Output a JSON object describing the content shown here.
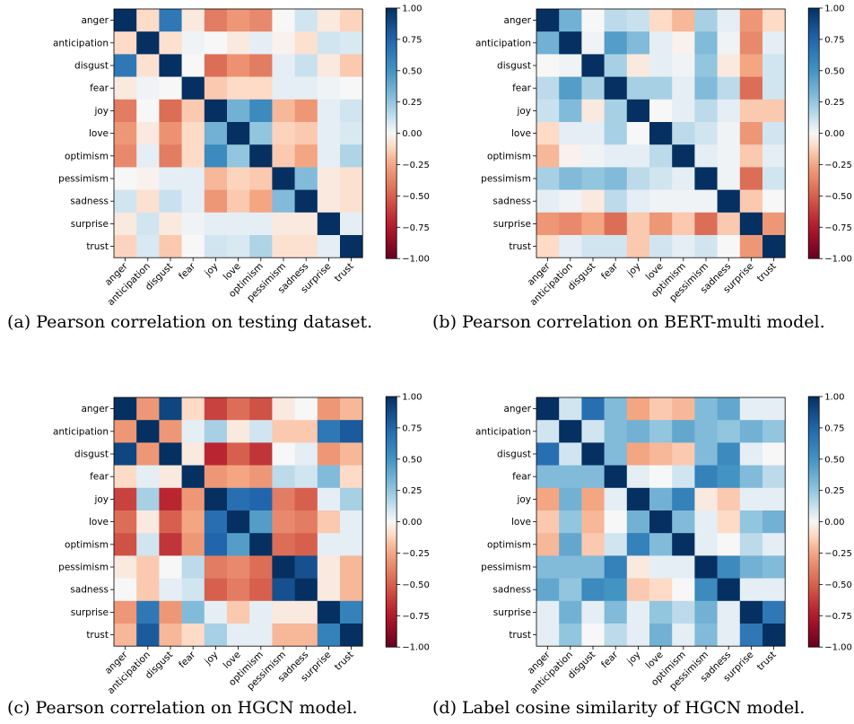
{
  "colorbar": {
    "ticks": [
      "1.00",
      "0.75",
      "0.50",
      "0.25",
      "0.00",
      "−0.25",
      "−0.50",
      "−0.75",
      "−1.00"
    ],
    "tick_values": [
      1.0,
      0.75,
      0.5,
      0.25,
      0.0,
      -0.25,
      -0.5,
      -0.75,
      -1.0
    ],
    "colors": {
      "high": "#053061",
      "mid": "#f7f7f7",
      "low": "#67001f"
    }
  },
  "chart_data": [
    {
      "type": "heatmap",
      "panel": "a",
      "caption": "(a) Pearson correlation on testing dataset.",
      "labels": [
        "anger",
        "anticipation",
        "disgust",
        "fear",
        "joy",
        "love",
        "optimism",
        "pessimism",
        "sadness",
        "surprise",
        "trust"
      ],
      "value_range": [
        -1,
        1
      ],
      "matrix": [
        [
          1.0,
          -0.1,
          0.65,
          -0.05,
          -0.4,
          -0.3,
          -0.35,
          0.0,
          0.1,
          -0.05,
          -0.12
        ],
        [
          -0.1,
          1.0,
          -0.08,
          0.02,
          0.0,
          -0.05,
          0.05,
          -0.02,
          -0.08,
          0.1,
          0.08
        ],
        [
          0.65,
          -0.08,
          1.0,
          0.0,
          -0.45,
          -0.32,
          -0.4,
          0.05,
          0.12,
          -0.05,
          -0.15
        ],
        [
          -0.05,
          0.02,
          0.0,
          1.0,
          -0.15,
          -0.1,
          -0.1,
          0.05,
          0.05,
          0.02,
          0.0
        ],
        [
          -0.4,
          0.0,
          -0.45,
          -0.15,
          1.0,
          0.35,
          0.55,
          -0.2,
          -0.3,
          0.05,
          0.1
        ],
        [
          -0.3,
          -0.05,
          -0.32,
          -0.1,
          0.35,
          1.0,
          0.25,
          -0.12,
          -0.15,
          0.05,
          0.08
        ],
        [
          -0.35,
          0.05,
          -0.4,
          -0.1,
          0.55,
          0.25,
          1.0,
          -0.15,
          -0.25,
          0.05,
          0.18
        ],
        [
          0.0,
          -0.02,
          0.05,
          0.05,
          -0.2,
          -0.12,
          -0.15,
          1.0,
          0.3,
          -0.05,
          -0.08
        ],
        [
          0.1,
          -0.08,
          0.12,
          0.05,
          -0.3,
          -0.15,
          -0.25,
          0.3,
          1.0,
          -0.05,
          -0.08
        ],
        [
          -0.05,
          0.1,
          -0.05,
          0.02,
          0.05,
          0.05,
          0.05,
          -0.05,
          -0.05,
          1.0,
          0.05
        ],
        [
          -0.12,
          0.08,
          -0.15,
          0.0,
          0.1,
          0.08,
          0.18,
          -0.08,
          -0.08,
          0.05,
          1.0
        ]
      ]
    },
    {
      "type": "heatmap",
      "panel": "b",
      "caption": "(b) Pearson correlation on BERT-multi model.",
      "labels": [
        "anger",
        "anticipation",
        "disgust",
        "fear",
        "joy",
        "love",
        "optimism",
        "pessimism",
        "sadness",
        "surprise",
        "trust"
      ],
      "value_range": [
        -1,
        1
      ],
      "matrix": [
        [
          1.0,
          0.35,
          0.0,
          0.15,
          0.12,
          -0.1,
          -0.2,
          0.2,
          0.05,
          -0.3,
          -0.1
        ],
        [
          0.35,
          1.0,
          0.02,
          0.45,
          0.3,
          0.05,
          -0.02,
          0.3,
          0.02,
          -0.35,
          0.05
        ],
        [
          0.0,
          0.02,
          1.0,
          0.2,
          -0.05,
          0.05,
          0.02,
          0.25,
          -0.05,
          -0.25,
          0.1
        ],
        [
          0.15,
          0.45,
          0.2,
          1.0,
          0.2,
          0.2,
          0.05,
          0.3,
          0.15,
          -0.45,
          0.1
        ],
        [
          0.12,
          0.3,
          -0.05,
          0.2,
          1.0,
          0.0,
          0.05,
          0.15,
          0.05,
          -0.15,
          -0.15
        ],
        [
          -0.1,
          0.05,
          0.05,
          0.2,
          0.0,
          1.0,
          0.15,
          0.1,
          0.02,
          -0.3,
          0.1
        ],
        [
          -0.2,
          -0.02,
          0.02,
          0.05,
          0.05,
          0.15,
          1.0,
          0.05,
          0.02,
          -0.15,
          0.05
        ],
        [
          0.2,
          0.3,
          0.25,
          0.3,
          0.15,
          0.1,
          0.05,
          1.0,
          0.02,
          -0.45,
          0.1
        ],
        [
          0.05,
          0.02,
          -0.05,
          0.15,
          0.05,
          0.02,
          0.02,
          0.02,
          1.0,
          -0.15,
          0.0
        ],
        [
          -0.3,
          -0.35,
          -0.25,
          -0.45,
          -0.15,
          -0.3,
          -0.15,
          -0.45,
          -0.15,
          1.0,
          -0.3
        ],
        [
          -0.1,
          0.05,
          0.1,
          0.1,
          -0.15,
          0.1,
          0.05,
          0.1,
          0.0,
          -0.3,
          1.0
        ]
      ]
    },
    {
      "type": "heatmap",
      "panel": "c",
      "caption": "(c) Pearson correlation on HGCN model.",
      "labels": [
        "anger",
        "anticipation",
        "disgust",
        "fear",
        "joy",
        "love",
        "optimism",
        "pessimism",
        "sadness",
        "surprise",
        "trust"
      ],
      "value_range": [
        -1,
        1
      ],
      "matrix": [
        [
          1.0,
          -0.3,
          0.9,
          -0.1,
          -0.6,
          -0.45,
          -0.55,
          -0.05,
          0.0,
          -0.3,
          -0.2
        ],
        [
          -0.3,
          1.0,
          -0.3,
          0.05,
          0.2,
          -0.05,
          0.1,
          -0.15,
          -0.15,
          0.65,
          0.8
        ],
        [
          0.9,
          -0.3,
          1.0,
          -0.05,
          -0.7,
          -0.5,
          -0.65,
          0.0,
          0.05,
          -0.3,
          -0.2
        ],
        [
          -0.1,
          0.05,
          -0.05,
          1.0,
          -0.3,
          -0.25,
          -0.3,
          0.15,
          0.1,
          0.3,
          -0.1
        ],
        [
          -0.6,
          0.2,
          -0.7,
          -0.3,
          1.0,
          0.7,
          0.75,
          -0.4,
          -0.5,
          0.05,
          0.2
        ],
        [
          -0.45,
          -0.05,
          -0.5,
          -0.25,
          0.7,
          1.0,
          0.45,
          -0.35,
          -0.4,
          -0.15,
          0.05
        ],
        [
          -0.55,
          0.1,
          -0.65,
          -0.3,
          0.75,
          0.45,
          1.0,
          -0.45,
          -0.5,
          0.05,
          0.05
        ],
        [
          -0.05,
          -0.15,
          0.0,
          0.15,
          -0.4,
          -0.35,
          -0.45,
          1.0,
          0.85,
          -0.05,
          -0.2
        ],
        [
          0.0,
          -0.15,
          0.05,
          0.1,
          -0.5,
          -0.4,
          -0.5,
          0.85,
          1.0,
          -0.05,
          -0.2
        ],
        [
          -0.3,
          0.65,
          -0.3,
          0.3,
          0.05,
          -0.15,
          0.05,
          -0.05,
          -0.05,
          1.0,
          0.6
        ],
        [
          -0.2,
          0.8,
          -0.2,
          -0.1,
          0.2,
          0.05,
          0.05,
          -0.2,
          -0.2,
          0.6,
          1.0
        ]
      ]
    },
    {
      "type": "heatmap",
      "panel": "d",
      "caption": "(d) Label cosine similarity of HGCN model.",
      "labels": [
        "anger",
        "anticipation",
        "disgust",
        "fear",
        "joy",
        "love",
        "optimism",
        "pessimism",
        "sadness",
        "surprise",
        "trust"
      ],
      "value_range": [
        -1,
        1
      ],
      "matrix": [
        [
          1.0,
          0.1,
          0.7,
          0.3,
          -0.25,
          -0.15,
          -0.2,
          0.3,
          0.4,
          0.05,
          0.05
        ],
        [
          0.1,
          1.0,
          0.1,
          0.3,
          0.35,
          0.25,
          0.4,
          0.3,
          0.25,
          0.35,
          0.25
        ],
        [
          0.7,
          0.1,
          1.0,
          0.3,
          -0.25,
          -0.2,
          -0.15,
          0.3,
          0.55,
          0.05,
          0.0
        ],
        [
          0.3,
          0.3,
          0.3,
          1.0,
          0.05,
          0.0,
          0.1,
          0.6,
          0.5,
          0.3,
          0.15
        ],
        [
          -0.25,
          0.35,
          -0.25,
          0.05,
          1.0,
          0.35,
          0.6,
          -0.05,
          -0.15,
          0.05,
          0.05
        ],
        [
          -0.15,
          0.25,
          -0.2,
          0.0,
          0.35,
          1.0,
          0.3,
          0.05,
          -0.1,
          0.25,
          0.35
        ],
        [
          -0.2,
          0.4,
          -0.15,
          0.1,
          0.6,
          0.3,
          1.0,
          0.05,
          0.0,
          0.15,
          0.05
        ],
        [
          0.3,
          0.3,
          0.3,
          0.6,
          -0.05,
          0.05,
          0.05,
          1.0,
          0.55,
          0.35,
          0.3
        ],
        [
          0.4,
          0.25,
          0.55,
          0.5,
          -0.15,
          -0.1,
          0.0,
          0.55,
          1.0,
          0.05,
          0.05
        ],
        [
          0.05,
          0.35,
          0.05,
          0.3,
          0.05,
          0.25,
          0.15,
          0.35,
          0.05,
          1.0,
          0.65
        ],
        [
          0.05,
          0.25,
          0.0,
          0.15,
          0.05,
          0.35,
          0.05,
          0.3,
          0.05,
          0.65,
          1.0
        ]
      ]
    }
  ]
}
